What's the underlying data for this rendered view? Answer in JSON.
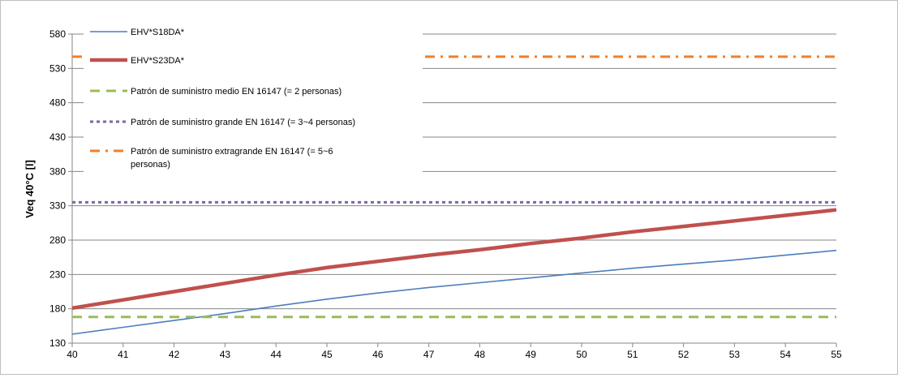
{
  "chart_data": {
    "type": "line",
    "title": "",
    "xlabel": "",
    "ylabel": "Veq 40°C [l]",
    "xlim": [
      40,
      55
    ],
    "ylim": [
      130,
      580
    ],
    "x_ticks": [
      40,
      41,
      42,
      43,
      44,
      45,
      46,
      47,
      48,
      49,
      50,
      51,
      52,
      53,
      54,
      55
    ],
    "y_ticks": [
      130,
      180,
      230,
      280,
      330,
      380,
      430,
      480,
      530,
      580
    ],
    "grid": "horizontal",
    "legend_position": "top-left",
    "series": [
      {
        "name": "EHV*S18DA*",
        "color": "#4a7ebb",
        "style": "solid",
        "x": [
          40,
          41,
          42,
          43,
          44,
          45,
          46,
          47,
          48,
          49,
          50,
          51,
          52,
          53,
          54,
          55
        ],
        "y": [
          143,
          153,
          163,
          173,
          184,
          194,
          203,
          211,
          218,
          225,
          232,
          239,
          245,
          251,
          258,
          265
        ]
      },
      {
        "name": "EHV*S23DA*",
        "color": "#c0504d",
        "style": "thick",
        "x": [
          40,
          41,
          42,
          43,
          44,
          45,
          46,
          47,
          48,
          49,
          50,
          51,
          52,
          53,
          54,
          55
        ],
        "y": [
          181,
          193,
          205,
          217,
          229,
          240,
          249,
          258,
          266,
          275,
          283,
          292,
          300,
          308,
          316,
          324
        ]
      },
      {
        "name": "Patrón de suministro medio EN 16147 (= 2 personas)",
        "color": "#9bbb59",
        "style": "dash",
        "x": [
          40,
          55
        ],
        "y": [
          168,
          168
        ]
      },
      {
        "name": "Patrón de suministro grande EN 16147 (= 3~4 personas)",
        "color": "#8064a2",
        "style": "dot",
        "x": [
          40,
          55
        ],
        "y": [
          335,
          335
        ]
      },
      {
        "name": "Patrón de suministro extragrande EN 16147 (= 5~6 personas)",
        "color": "#f07f2a",
        "style": "dashdot",
        "x": [
          40,
          55
        ],
        "y": [
          547,
          547
        ]
      }
    ]
  }
}
